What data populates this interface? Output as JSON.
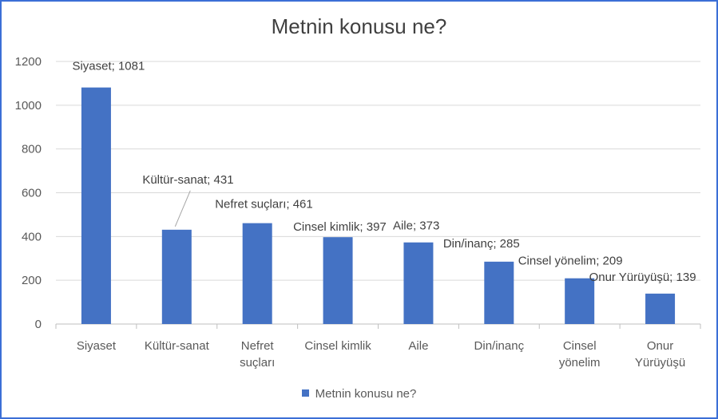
{
  "colors": {
    "bar": "#4472c4",
    "grid": "#d9d9d9",
    "axis": "#bfbfbf",
    "leader": "#a6a6a6"
  },
  "chart_data": {
    "type": "bar",
    "title": "Metnin konusu ne?",
    "xlabel": "",
    "ylabel": "",
    "ylim": [
      0,
      1200
    ],
    "yticks": [
      0,
      200,
      400,
      600,
      800,
      1000,
      1200
    ],
    "grid": true,
    "legend_position": "bottom",
    "categories": [
      [
        "Siyaset"
      ],
      [
        "Kültür-sanat"
      ],
      [
        "Nefret",
        "suçları"
      ],
      [
        "Cinsel kimlik"
      ],
      [
        "Aile"
      ],
      [
        "Din/inanç"
      ],
      [
        "Cinsel",
        "yönelim"
      ],
      [
        "Onur",
        "Yürüyüşü"
      ]
    ],
    "series": [
      {
        "name": "Metnin konusu ne?",
        "values": [
          1081,
          431,
          461,
          397,
          373,
          285,
          209,
          139
        ]
      }
    ],
    "data_labels": [
      "Siyaset; 1081",
      "Kültür-sanat; 431",
      "Nefret suçları; 461",
      "Cinsel kimlik; 397",
      "Aile; 373",
      "Din/inanç; 285",
      "Cinsel yönelim; 209",
      "Onur Yürüyüşü; 139"
    ]
  }
}
